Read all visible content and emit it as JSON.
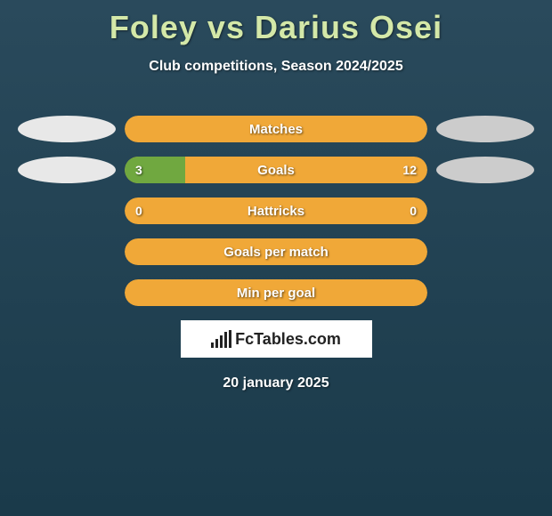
{
  "title": "Foley vs Darius Osei",
  "subtitle": "Club competitions, Season 2024/2025",
  "colors": {
    "left_team": "#e8e8e8",
    "right_team": "#cccccc",
    "bar_primary": "#f0a838",
    "bar_fill_left": "#70a840",
    "title_color": "#d4e8a8"
  },
  "stats": [
    {
      "label": "Matches",
      "left_value": "",
      "right_value": "",
      "left_pct": 0,
      "show_ovals": true,
      "left_oval_color": "#e8e8e8",
      "right_oval_color": "#cccccc",
      "bar_bg": "#f0a838"
    },
    {
      "label": "Goals",
      "left_value": "3",
      "right_value": "12",
      "left_pct": 20,
      "show_ovals": true,
      "left_oval_color": "#e8e8e8",
      "right_oval_color": "#cccccc",
      "bar_bg": "#f0a838",
      "fill_color": "#70a840"
    },
    {
      "label": "Hattricks",
      "left_value": "0",
      "right_value": "0",
      "left_pct": 0,
      "show_ovals": false,
      "bar_bg": "#f0a838"
    },
    {
      "label": "Goals per match",
      "left_value": "",
      "right_value": "",
      "left_pct": 0,
      "show_ovals": false,
      "bar_bg": "#f0a838"
    },
    {
      "label": "Min per goal",
      "left_value": "",
      "right_value": "",
      "left_pct": 0,
      "show_ovals": false,
      "bar_bg": "#f0a838"
    }
  ],
  "logo_text": "FcTables.com",
  "date": "20 january 2025"
}
